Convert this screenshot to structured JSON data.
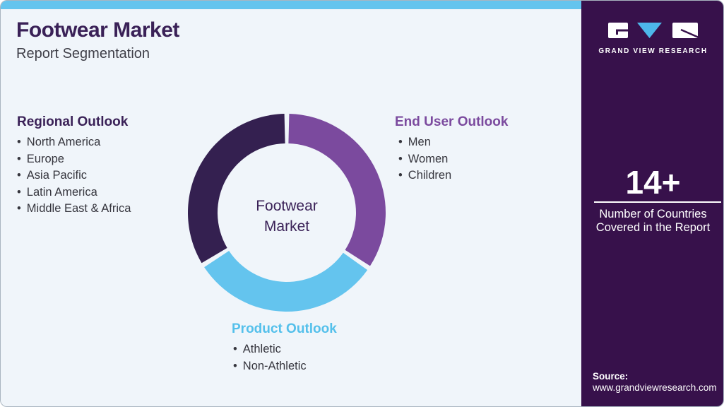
{
  "colors": {
    "accent_blue": "#64c4ee",
    "deep_purple": "#3a2157",
    "donut_dark": "#342050",
    "donut_purple": "#7b4a9e",
    "sidebar_bg": "#37114b",
    "body_text": "#35353d",
    "card_bg": "#f0f5fa",
    "heading_light_blue": "#54c0eb",
    "card_border": "#a9b5c0",
    "logo_v_blue": "#4db7ea"
  },
  "header": {
    "title": "Footwear Market",
    "subtitle": "Report Segmentation"
  },
  "sections": {
    "regional": {
      "heading": "Regional Outlook",
      "items": [
        "North America",
        "Europe",
        "Asia Pacific",
        "Latin America",
        "Middle East & Africa"
      ]
    },
    "end_user": {
      "heading": "End User Outlook",
      "items": [
        "Men",
        "Women",
        "Children"
      ]
    },
    "product": {
      "heading": "Product Outlook",
      "items": [
        "Athletic",
        "Non-Athletic"
      ]
    }
  },
  "chart_data": {
    "type": "pie",
    "variant": "donut",
    "title": "Footwear Market Report Segmentation",
    "center_label_lines": [
      "Footwear",
      "Market"
    ],
    "outer_radius": 140,
    "inner_radius": 98,
    "gap_degrees": 2.8,
    "legend_position": "around-chart",
    "segments": [
      {
        "label": "End User Outlook",
        "start_deg": 0,
        "end_deg": 124,
        "color": "#7b4a9e",
        "items": [
          "Men",
          "Women",
          "Children"
        ]
      },
      {
        "label": "Product Outlook",
        "start_deg": 124,
        "end_deg": 238,
        "color": "#64c4ee",
        "items": [
          "Athletic",
          "Non-Athletic"
        ]
      },
      {
        "label": "Regional Outlook",
        "start_deg": 238,
        "end_deg": 360,
        "color": "#342050",
        "items": [
          "North America",
          "Europe",
          "Asia Pacific",
          "Latin America",
          "Middle East & Africa"
        ]
      }
    ]
  },
  "sidebar": {
    "brand": "GRAND VIEW RESEARCH",
    "stat_value": "14+",
    "stat_label": "Number of Countries Covered in the Report",
    "source_label": "Source:",
    "source_url": "www.grandviewresearch.com"
  }
}
